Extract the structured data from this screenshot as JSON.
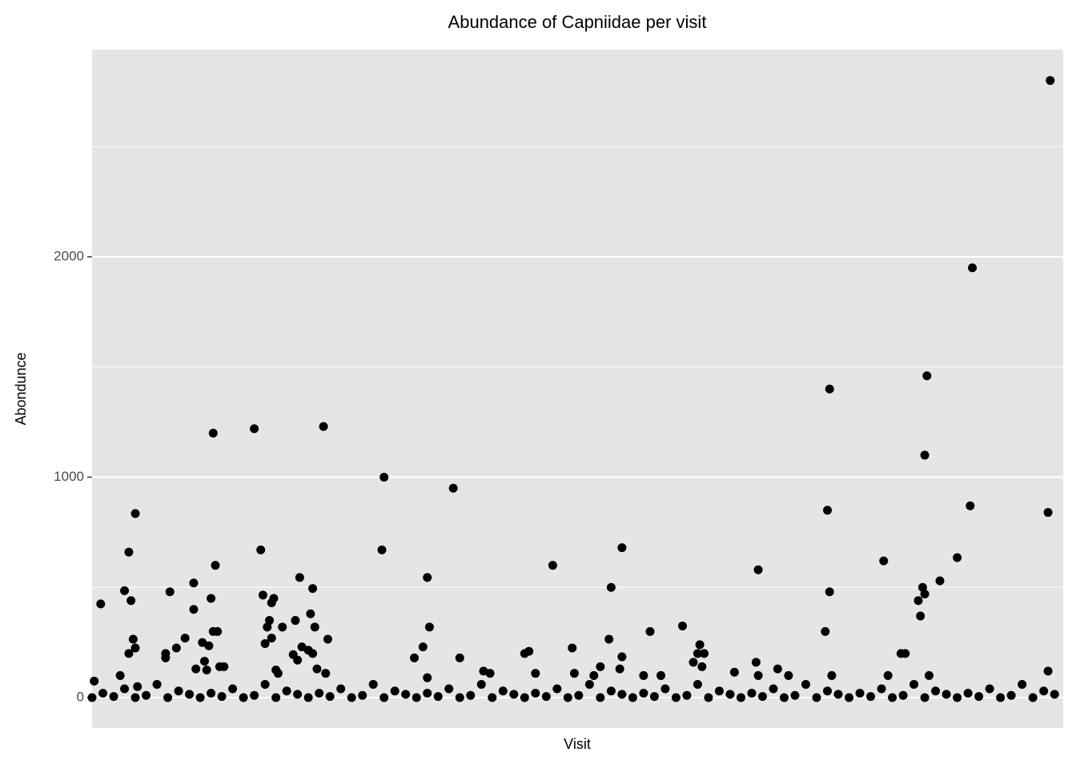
{
  "chart_data": {
    "type": "scatter",
    "title": "Abundance of Capniidae per visit",
    "x_label": "Visit",
    "y_label": "Abondunce",
    "x": [
      1,
      4,
      15,
      17,
      17,
      18,
      19,
      20,
      20,
      13,
      21,
      34,
      34,
      36,
      39,
      43,
      47,
      47,
      48,
      51,
      52,
      53,
      54,
      55,
      56,
      56,
      57,
      58,
      59,
      61,
      75,
      78,
      79,
      80,
      81,
      82,
      83,
      83,
      84,
      85,
      86,
      88,
      93,
      94,
      95,
      96,
      97,
      100,
      101,
      102,
      102,
      103,
      104,
      107,
      109,
      108,
      134,
      135,
      149,
      153,
      155,
      155,
      156,
      167,
      170,
      181,
      184,
      200,
      202,
      205,
      213,
      222,
      223,
      232,
      235,
      239,
      240,
      244,
      245,
      245,
      255,
      258,
      263,
      273,
      278,
      280,
      281,
      282,
      283,
      297,
      307,
      308,
      308,
      317,
      322,
      339,
      340,
      341,
      341,
      342,
      366,
      368,
      374,
      376,
      383,
      382,
      384,
      385,
      385,
      386,
      387,
      392,
      400,
      406,
      407,
      442,
      442,
      443,
      0,
      5,
      10,
      15,
      20,
      25,
      30,
      35,
      40,
      45,
      50,
      55,
      60,
      65,
      70,
      75,
      80,
      85,
      90,
      95,
      100,
      105,
      110,
      115,
      120,
      125,
      130,
      135,
      140,
      145,
      150,
      155,
      160,
      165,
      170,
      175,
      180,
      185,
      190,
      195,
      200,
      205,
      210,
      215,
      220,
      225,
      230,
      235,
      240,
      245,
      250,
      255,
      260,
      265,
      270,
      275,
      280,
      285,
      290,
      295,
      300,
      305,
      310,
      315,
      320,
      325,
      330,
      335,
      340,
      345,
      350,
      355,
      360,
      365,
      370,
      375,
      380,
      385,
      390,
      395,
      400,
      405,
      410,
      415,
      420,
      425,
      430,
      435,
      440,
      445
    ],
    "values": [
      75,
      425,
      485,
      200,
      660,
      440,
      265,
      225,
      835,
      100,
      50,
      200,
      180,
      480,
      225,
      270,
      520,
      400,
      130,
      250,
      165,
      125,
      235,
      450,
      300,
      1200,
      600,
      300,
      140,
      140,
      1220,
      670,
      465,
      245,
      320,
      350,
      270,
      430,
      450,
      125,
      110,
      320,
      195,
      350,
      170,
      545,
      230,
      215,
      380,
      200,
      495,
      320,
      130,
      1230,
      265,
      110,
      670,
      1000,
      180,
      230,
      90,
      545,
      320,
      950,
      180,
      120,
      110,
      200,
      210,
      110,
      600,
      225,
      110,
      100,
      140,
      265,
      500,
      130,
      185,
      680,
      100,
      300,
      100,
      325,
      160,
      200,
      240,
      140,
      200,
      115,
      160,
      100,
      580,
      130,
      100,
      300,
      850,
      1400,
      480,
      100,
      620,
      100,
      200,
      200,
      370,
      440,
      500,
      470,
      1100,
      1460,
      100,
      530,
      635,
      870,
      1950,
      840,
      120,
      2800,
      0,
      20,
      5,
      40,
      0,
      10,
      60,
      0,
      30,
      15,
      0,
      20,
      5,
      40,
      0,
      10,
      60,
      0,
      30,
      15,
      0,
      20,
      5,
      40,
      0,
      10,
      60,
      0,
      30,
      15,
      0,
      20,
      5,
      40,
      0,
      10,
      60,
      0,
      30,
      15,
      0,
      20,
      5,
      40,
      0,
      10,
      60,
      0,
      30,
      15,
      0,
      20,
      5,
      40,
      0,
      10,
      60,
      0,
      30,
      15,
      0,
      20,
      5,
      40,
      0,
      10,
      60,
      0,
      30,
      15,
      0,
      20,
      5,
      40,
      0,
      10,
      60,
      0,
      30,
      15,
      0,
      20,
      5,
      40,
      0,
      10,
      60,
      0,
      30,
      15
    ],
    "color": "#000000",
    "background": "#e5e5e5",
    "xlim": [
      0,
      449
    ],
    "ylim": [
      -138,
      2940
    ],
    "yticks": [
      0,
      1000,
      2000
    ],
    "minor_yticks": [
      500,
      1500,
      2500
    ],
    "grid": true
  }
}
